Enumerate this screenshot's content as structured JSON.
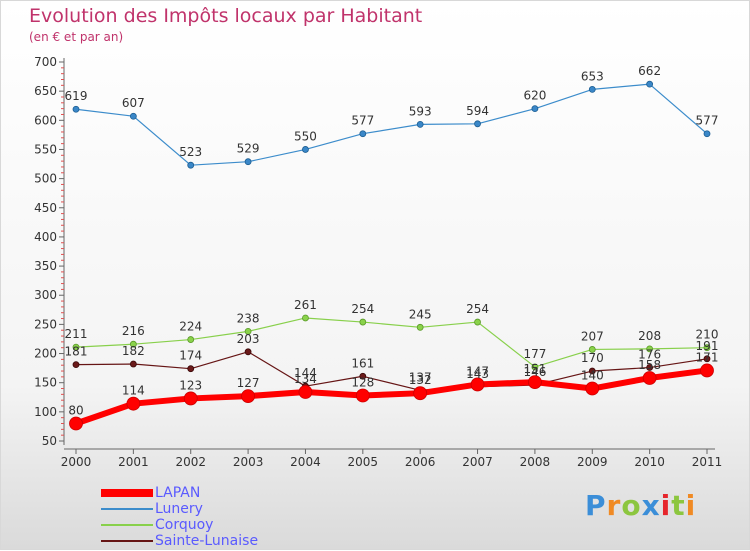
{
  "header": {
    "title": "Evolution des Impôts locaux par Habitant",
    "subtitle": "(en € et par an)"
  },
  "chart_data": {
    "type": "line",
    "title": "Evolution des Impôts locaux par Habitant",
    "subtitle": "(en € et par an)",
    "xlabel": "",
    "ylabel": "",
    "x": [
      "2000",
      "2001",
      "2002",
      "2003",
      "2004",
      "2005",
      "2006",
      "2007",
      "2008",
      "2009",
      "2010",
      "2011"
    ],
    "ylim": [
      50,
      700
    ],
    "yticks": [
      50,
      100,
      150,
      200,
      250,
      300,
      350,
      400,
      450,
      500,
      550,
      600,
      650,
      700
    ],
    "grid": false,
    "legend_position": "bottom-left",
    "series": [
      {
        "name": "LAPAN",
        "color": "#ff0000",
        "values": [
          80,
          114,
          123,
          127,
          134,
          128,
          132,
          147,
          151,
          140,
          158,
          171
        ]
      },
      {
        "name": "Lunery",
        "color": "#3c8ccb",
        "values": [
          619,
          607,
          523,
          529,
          550,
          577,
          593,
          594,
          620,
          653,
          662,
          577
        ]
      },
      {
        "name": "Corquoy",
        "color": "#88d04b",
        "values": [
          211,
          216,
          224,
          238,
          261,
          254,
          245,
          254,
          177,
          207,
          208,
          210
        ]
      },
      {
        "name": "Sainte-Lunaise",
        "color": "#661515",
        "values": [
          181,
          182,
          174,
          203,
          144,
          161,
          137,
          143,
          146,
          170,
          176,
          191
        ]
      }
    ]
  },
  "logo": {
    "text": "Proxiti",
    "colors": [
      "#3b8ed8",
      "#f08a24",
      "#8cc63f",
      "#3b8ed8",
      "#e6262c",
      "#8cc63f",
      "#f08a24"
    ]
  }
}
